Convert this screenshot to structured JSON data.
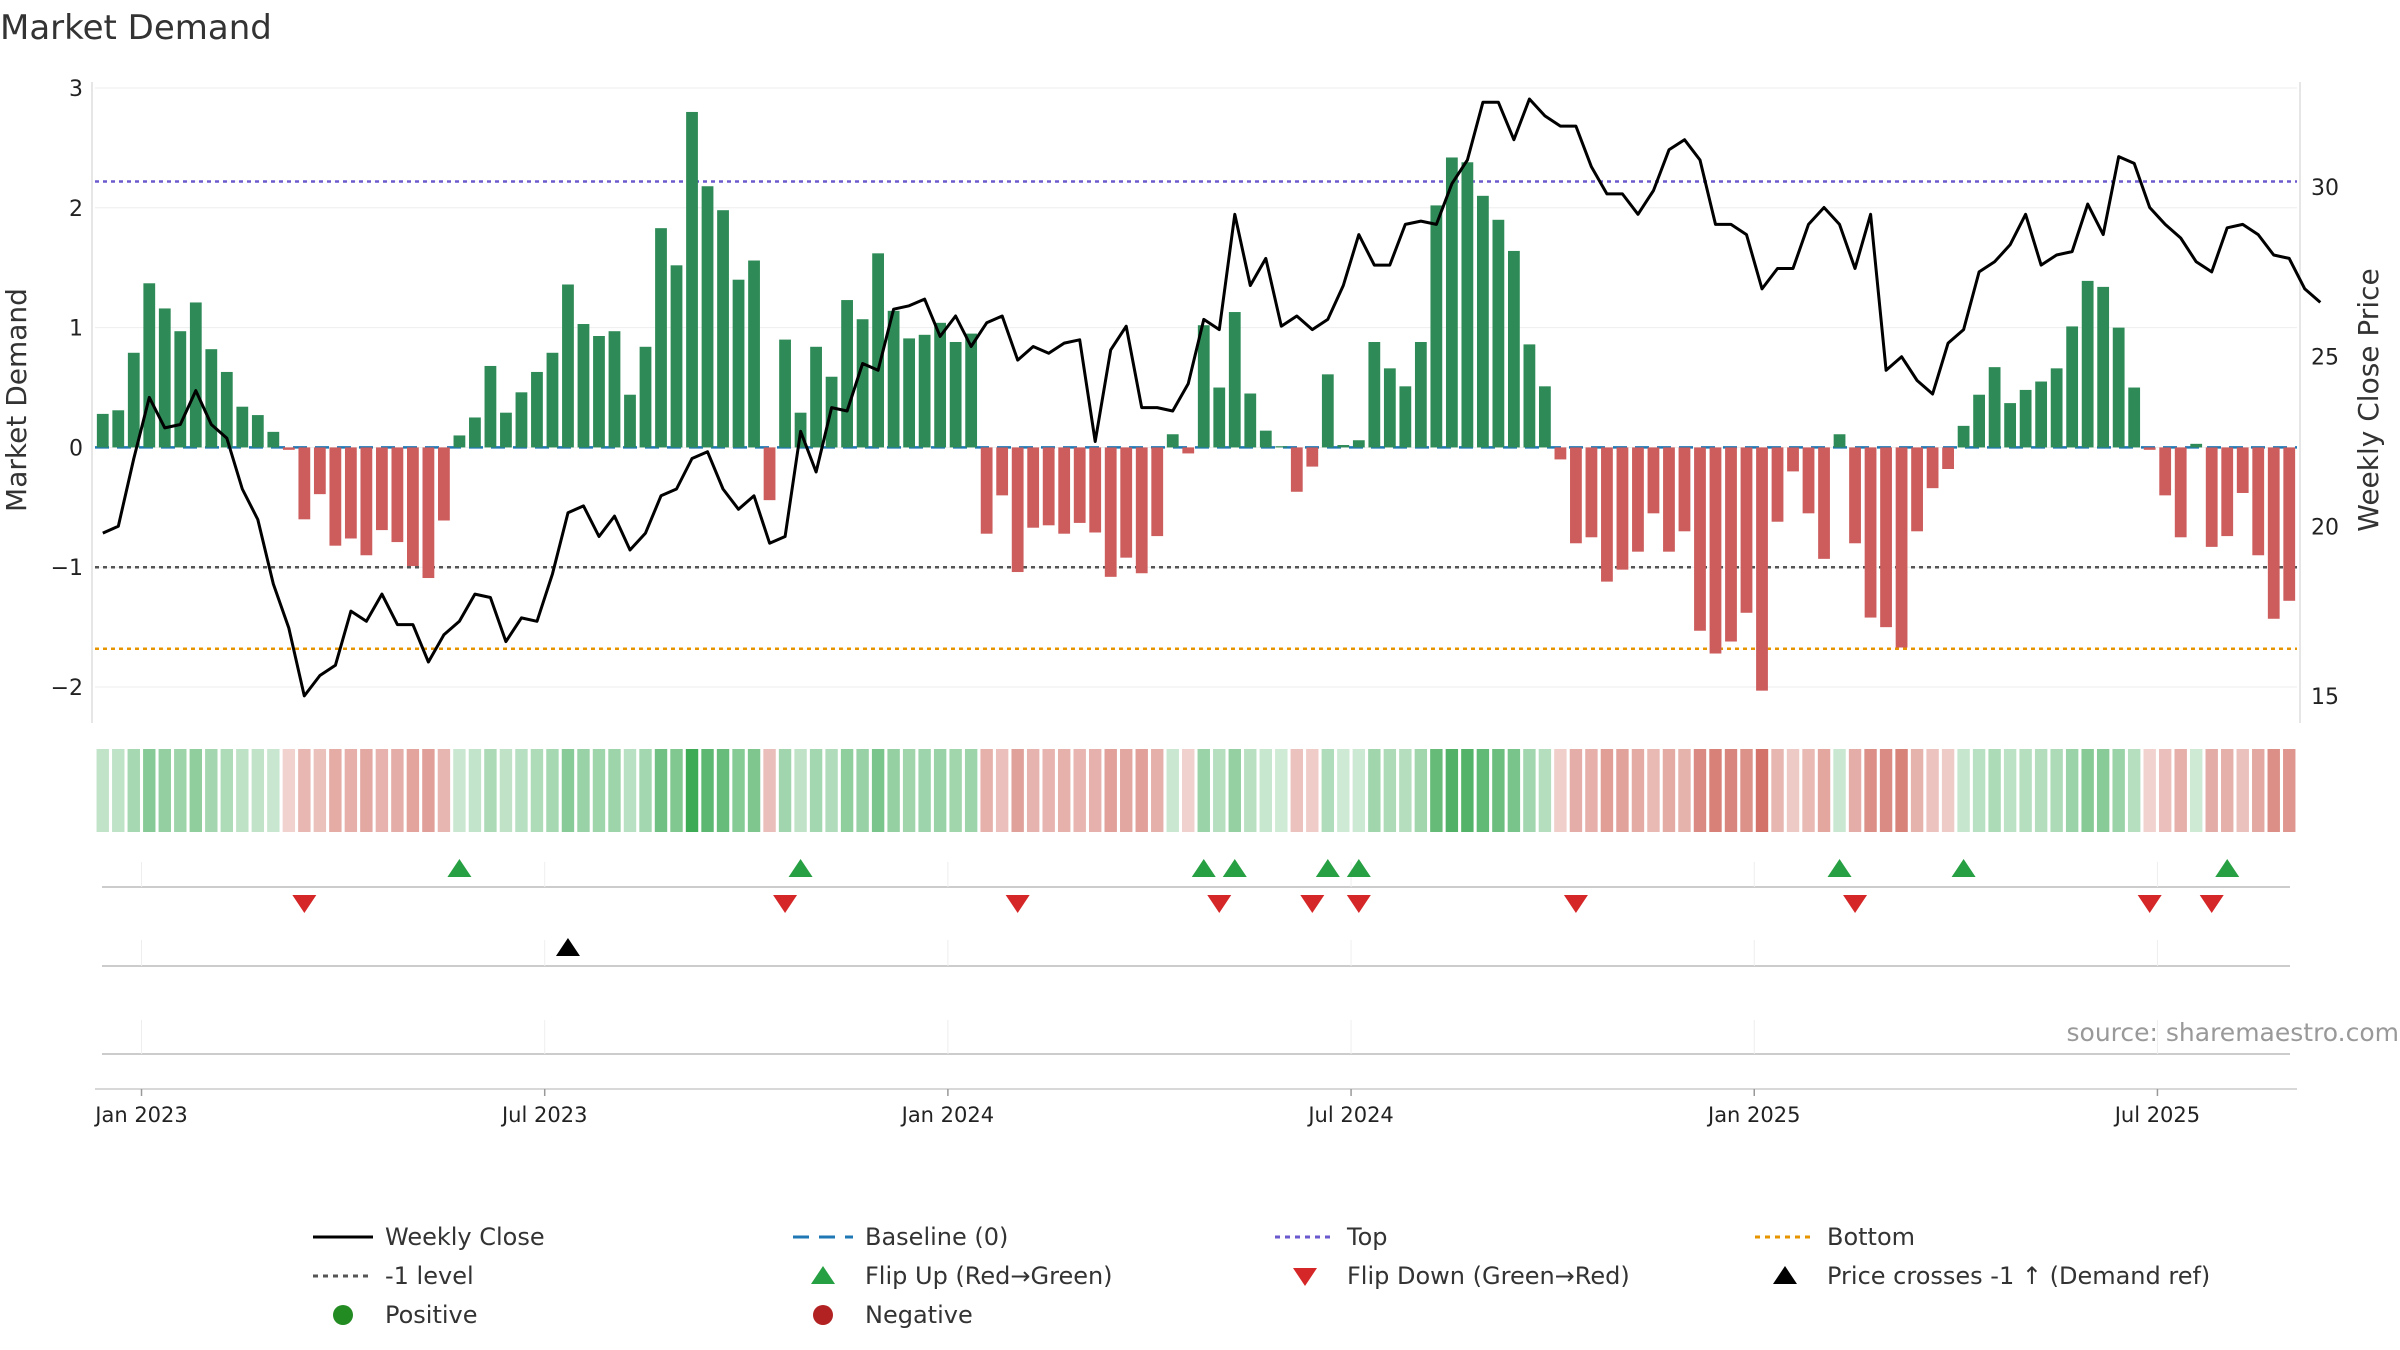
{
  "chart_data": {
    "type": "bar",
    "title": "Market Demand",
    "ylabel": "Market Demand",
    "y2label": "Weekly Close Price",
    "ylim": [
      -2.3,
      3.05
    ],
    "y2lim": [
      14.2,
      33.1
    ],
    "yticks": [
      3,
      2,
      1,
      0,
      -1,
      -2
    ],
    "yticks_labels": [
      "3",
      "2",
      "1",
      "0",
      "−1",
      "−2"
    ],
    "y2ticks": [
      30,
      25,
      20,
      15
    ],
    "xticks": [
      "Jan 2023",
      "Jul 2023",
      "Jan 2024",
      "Jul 2024",
      "Jan 2025",
      "Jul 2025"
    ],
    "xtick_weeks": [
      2.5,
      28.5,
      54.5,
      80.5,
      106.5,
      132.5
    ],
    "reference_lines": {
      "top": 2.22,
      "minus_one": -1,
      "bottom": -1.68,
      "baseline": 0
    },
    "series": [
      {
        "name": "Market Demand",
        "type": "bar",
        "values": [
          0.28,
          0.31,
          0.79,
          1.37,
          1.16,
          0.97,
          1.21,
          0.82,
          0.63,
          0.34,
          0.27,
          0.13,
          -0.02,
          -0.6,
          -0.39,
          -0.82,
          -0.76,
          -0.9,
          -0.69,
          -0.79,
          -0.99,
          -1.09,
          -0.61,
          0.1,
          0.25,
          0.68,
          0.29,
          0.46,
          0.63,
          0.79,
          1.36,
          1.03,
          0.93,
          0.97,
          0.44,
          0.84,
          1.83,
          1.52,
          2.8,
          2.18,
          1.98,
          1.4,
          1.56,
          -0.44,
          0.9,
          0.29,
          0.84,
          0.59,
          1.23,
          1.07,
          1.62,
          1.14,
          0.91,
          0.94,
          1.04,
          0.88,
          0.95,
          -0.72,
          -0.4,
          -1.04,
          -0.67,
          -0.65,
          -0.72,
          -0.63,
          -0.71,
          -1.08,
          -0.92,
          -1.05,
          -0.74,
          0.11,
          -0.05,
          1.02,
          0.5,
          1.13,
          0.45,
          0.14,
          0.01,
          -0.37,
          -0.16,
          0.61,
          0.02,
          0.06,
          0.88,
          0.66,
          0.51,
          0.88,
          2.02,
          2.42,
          2.38,
          2.1,
          1.9,
          1.64,
          0.86,
          0.51,
          -0.1,
          -0.8,
          -0.75,
          -1.12,
          -1.02,
          -0.87,
          -0.55,
          -0.87,
          -0.7,
          -1.53,
          -1.72,
          -1.62,
          -1.38,
          -2.03,
          -0.62,
          -0.2,
          -0.55,
          -0.93,
          0.11,
          -0.8,
          -1.42,
          -1.5,
          -1.67,
          -0.7,
          -0.34,
          -0.18,
          0.18,
          0.44,
          0.67,
          0.37,
          0.48,
          0.55,
          0.66,
          1.01,
          1.39,
          1.34,
          1.0,
          0.5,
          -0.02,
          -0.4,
          -0.75,
          0.03,
          -0.83,
          -0.74,
          -0.38,
          -0.9,
          -1.43,
          -1.28
        ]
      },
      {
        "name": "Weekly Close",
        "type": "line",
        "values": [
          19.8,
          20.0,
          22.0,
          23.8,
          22.9,
          23.0,
          24.0,
          23.0,
          22.6,
          21.1,
          20.2,
          18.3,
          17.0,
          15.0,
          15.6,
          15.9,
          17.5,
          17.2,
          18.0,
          17.1,
          17.1,
          16.0,
          16.8,
          17.2,
          18.0,
          17.9,
          16.6,
          17.3,
          17.2,
          18.6,
          20.4,
          20.6,
          19.7,
          20.3,
          19.3,
          19.8,
          20.9,
          21.1,
          22.0,
          22.2,
          21.1,
          20.5,
          20.9,
          19.5,
          19.7,
          22.8,
          21.6,
          23.5,
          23.4,
          24.8,
          24.6,
          26.4,
          26.5,
          26.7,
          25.6,
          26.2,
          25.3,
          26.0,
          26.2,
          24.9,
          25.3,
          25.1,
          25.4,
          25.5,
          22.5,
          25.2,
          25.9,
          23.5,
          23.5,
          23.4,
          24.2,
          26.1,
          25.8,
          29.2,
          27.1,
          27.9,
          25.9,
          26.2,
          25.8,
          26.1,
          27.1,
          28.6,
          27.7,
          27.7,
          28.9,
          29.0,
          28.9,
          30.1,
          30.8,
          32.5,
          32.5,
          31.4,
          32.6,
          32.1,
          31.8,
          31.8,
          30.6,
          29.8,
          29.8,
          29.2,
          29.9,
          31.1,
          31.4,
          30.8,
          28.9,
          28.9,
          28.6,
          27.0,
          27.6,
          27.6,
          28.9,
          29.4,
          28.9,
          27.6,
          29.2,
          24.6,
          25.0,
          24.3,
          23.9,
          25.4,
          25.8,
          27.5,
          27.8,
          28.3,
          29.2,
          27.7,
          28.0,
          28.1,
          29.5,
          28.6,
          30.9,
          30.7,
          29.4,
          28.9,
          28.5,
          27.8,
          27.5,
          28.8,
          28.9,
          28.6,
          28.0,
          27.9,
          27.0,
          26.6
        ]
      }
    ],
    "color_strip": {
      "sign": "value of Market Demand",
      "positive_color": "#2e8b57",
      "negative_color": "#cd5c5c"
    },
    "events": {
      "flip_up": [
        23,
        45,
        71,
        73,
        79,
        81,
        112,
        120,
        137
      ],
      "flip_down": [
        13,
        44,
        59,
        72,
        78,
        81,
        95,
        113,
        132,
        136
      ],
      "price_cross": [
        30
      ]
    },
    "source": "source: sharemaestro.com",
    "legend": [
      {
        "label": "Weekly Close",
        "style": "solid-line",
        "color": "#000000"
      },
      {
        "label": "Baseline (0)",
        "style": "dashed-line",
        "color": "#1f77b4"
      },
      {
        "label": "Top",
        "style": "dotted-line",
        "color": "#6a5acd"
      },
      {
        "label": "Bottom",
        "style": "dotted-line",
        "color": "#e69500"
      },
      {
        "label": "-1 level",
        "style": "dotted-line",
        "color": "#555555"
      },
      {
        "label": "Flip Up (Red→Green)",
        "style": "triangle-up",
        "color": "#27a043"
      },
      {
        "label": "Flip Down (Green→Red)",
        "style": "triangle-down",
        "color": "#d62728"
      },
      {
        "label": "Price crosses -1 ↑ (Demand ref)",
        "style": "triangle-up",
        "color": "#000000"
      },
      {
        "label": "Positive",
        "style": "dot",
        "color": "#228b22"
      },
      {
        "label": "Negative",
        "style": "dot",
        "color": "#b22222"
      }
    ]
  }
}
